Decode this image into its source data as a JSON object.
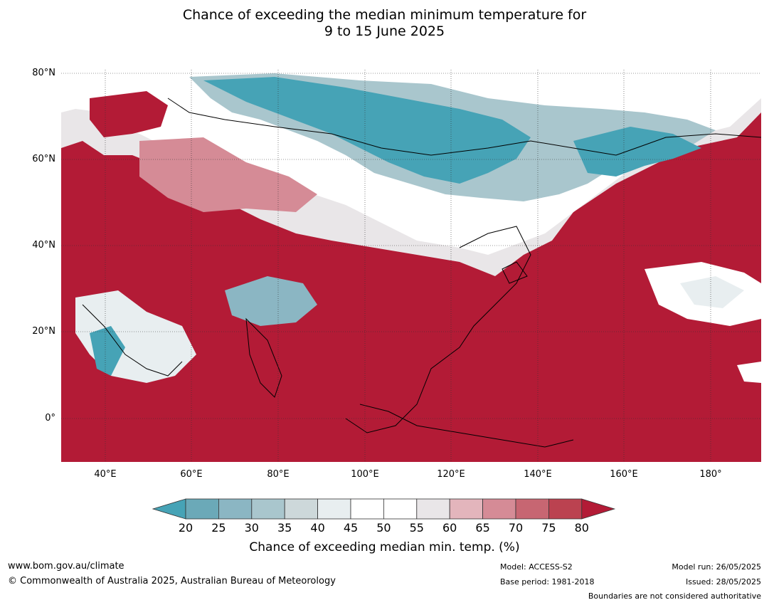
{
  "title": {
    "line1": "Chance of exceeding the median minimum temperature for",
    "line2": "9 to 15 June 2025"
  },
  "axes": {
    "lat_labels": [
      "80°N",
      "60°N",
      "40°N",
      "20°N",
      "0°"
    ],
    "lon_labels": [
      "40°E",
      "60°E",
      "80°E",
      "100°E",
      "120°E",
      "140°E",
      "160°E",
      "180°"
    ]
  },
  "colorbar": {
    "tick_labels": [
      "20",
      "25",
      "30",
      "35",
      "40",
      "45",
      "50",
      "55",
      "60",
      "65",
      "70",
      "75",
      "80"
    ],
    "colors": [
      "#46a3b6",
      "#6ba9b8",
      "#8bb6c3",
      "#a9c6cd",
      "#cdd8da",
      "#e8eef0",
      "#ffffff",
      "#ffffff",
      "#e9e6e8",
      "#e3b5bc",
      "#d58b96",
      "#c76672",
      "#bb4250",
      "#b31b36"
    ],
    "label": "Chance of exceeding median min. temp. (%)"
  },
  "footer": {
    "website": "www.bom.gov.au/climate",
    "copyright": "© Commonwealth of Australia 2025, Australian Bureau of Meteorology",
    "model": "Model: ACCESS-S2",
    "base_period": "Base period: 1981-2018",
    "model_run": "Model run: 26/05/2025",
    "issued": "Issued: 28/05/2025",
    "disclaimer": "Boundaries are not considered authoritative"
  }
}
